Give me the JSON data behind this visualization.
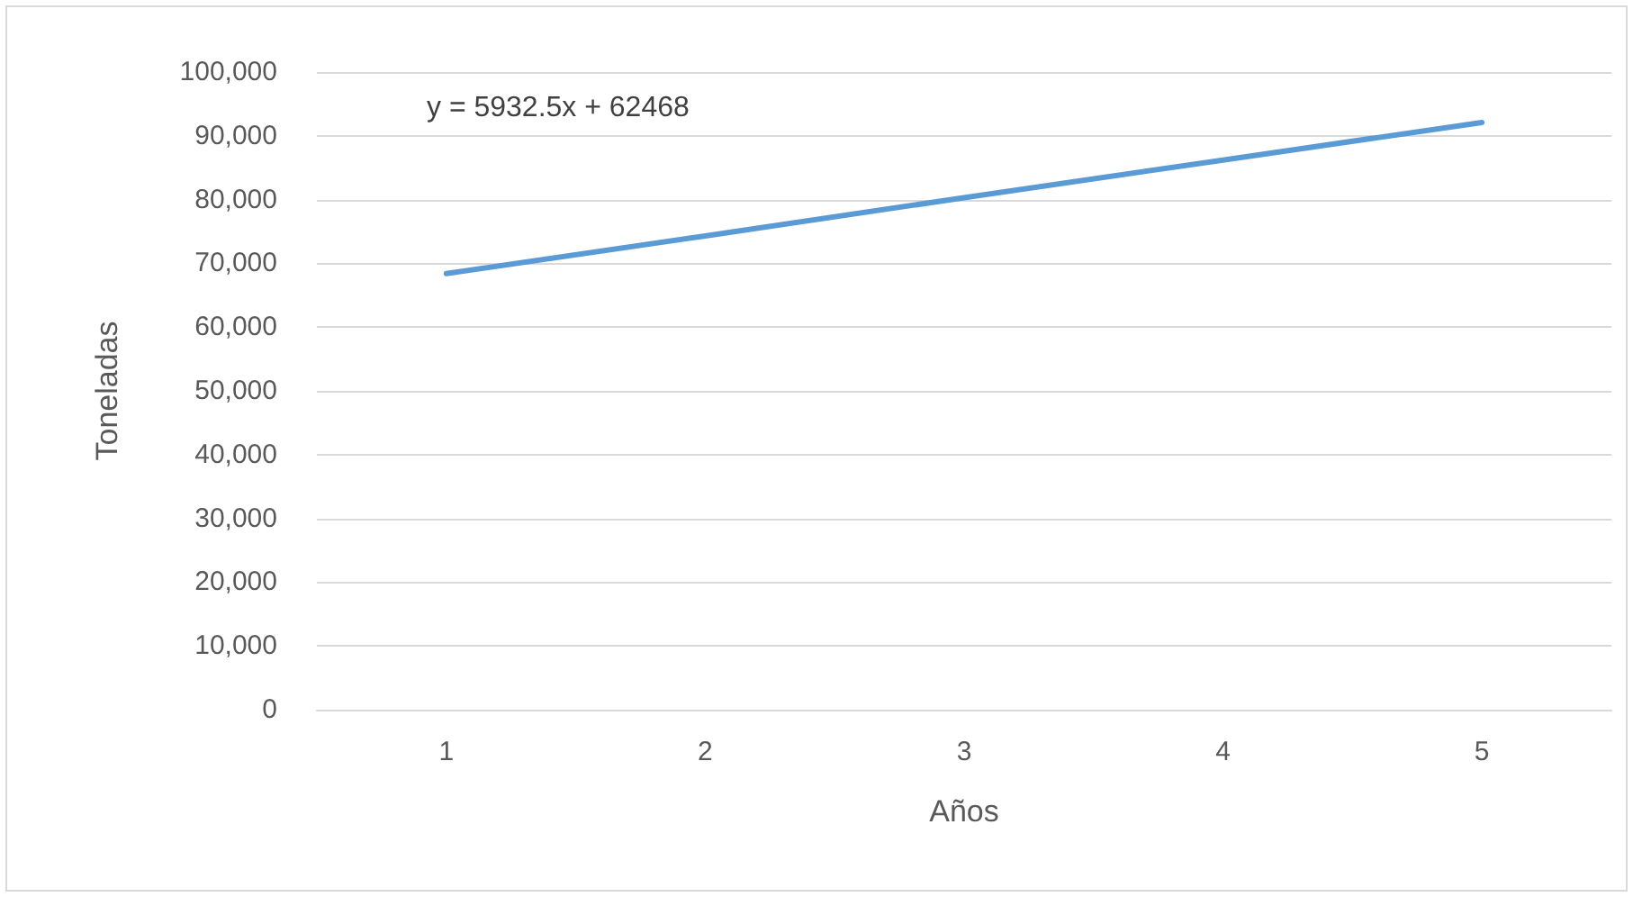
{
  "chart_data": {
    "type": "line",
    "xlabel": "Años",
    "ylabel": "Toneladas",
    "categories": [
      "1",
      "2",
      "3",
      "4",
      "5"
    ],
    "series": [
      {
        "color": "#5b9bd5",
        "values": [
          68400,
          74300,
          80300,
          86200,
          92100
        ]
      }
    ],
    "ylim": [
      0,
      100000
    ],
    "yticks": [
      0,
      {
        "value": 10000,
        "label": "10,000"
      },
      {
        "value": 20000,
        "label": "20,000"
      },
      {
        "value": 30000,
        "label": "30,000"
      },
      {
        "value": 40000,
        "label": "40,000"
      },
      {
        "value": 50000,
        "label": "50,000"
      },
      {
        "value": 60000,
        "label": "60,000"
      },
      {
        "value": 70000,
        "label": "70,000"
      },
      {
        "value": 80000,
        "label": "80,000"
      },
      {
        "value": 90000,
        "label": "90,000"
      },
      {
        "value": 100000,
        "label": "100,000"
      }
    ],
    "grid": "y",
    "marker": "none",
    "line_style": "solid",
    "annotations": [
      "y = 5932.5x + 62468"
    ]
  }
}
